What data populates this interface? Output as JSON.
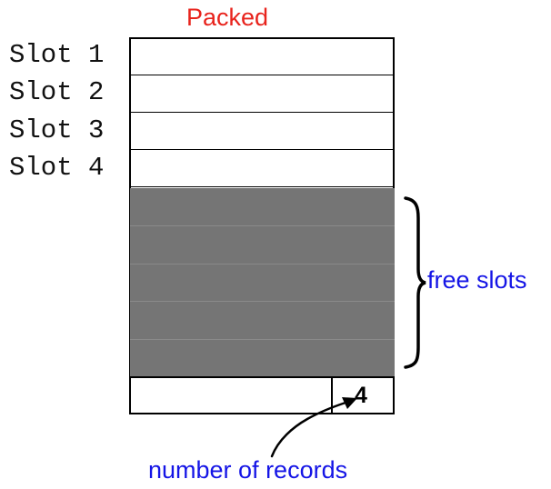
{
  "title": "Packed",
  "slots": [
    {
      "label": "Slot 1"
    },
    {
      "label": "Slot 2"
    },
    {
      "label": "Slot 3"
    },
    {
      "label": "Slot 4"
    }
  ],
  "free_slots_label": "free slots",
  "record_count": "4",
  "record_count_label": "number of records",
  "colors": {
    "title": "#e8231c",
    "annotation": "#1515e6",
    "free_area": "#757575",
    "outline": "#000000"
  }
}
